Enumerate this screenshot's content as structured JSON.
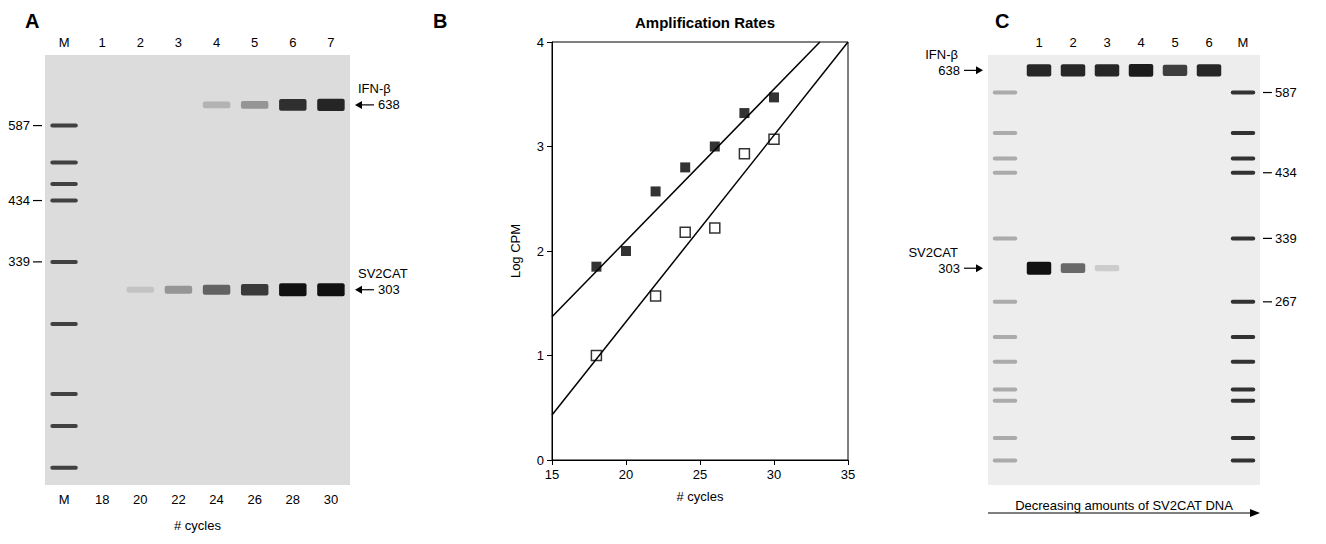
{
  "chart_data": [
    {
      "type": "gel",
      "panel": "A",
      "lanes": [
        "M",
        "1",
        "2",
        "3",
        "4",
        "5",
        "6",
        "7"
      ],
      "lane_labels_bottom": [
        "M",
        "18",
        "20",
        "22",
        "24",
        "26",
        "28",
        "30"
      ],
      "x_label": "# cycles",
      "log": "y",
      "ylim": [
        138,
        780
      ],
      "yticks": [
        587,
        434,
        339
      ],
      "ladder": {
        "sizes": [
          587,
          506,
          464,
          434,
          339,
          264,
          199,
          175,
          148
        ],
        "lane_intensities": [
          0.9,
          0,
          0,
          0,
          0,
          0,
          0,
          0
        ]
      },
      "bands": [
        {
          "name": "IFN-β",
          "size": 638,
          "intensities": [
            0,
            0,
            0,
            0,
            0.2,
            0.35,
            0.85,
            0.9
          ]
        },
        {
          "name": "SV2CAT",
          "size": 303,
          "intensities": [
            0,
            0,
            0.12,
            0.35,
            0.6,
            0.8,
            1,
            1
          ]
        }
      ]
    },
    {
      "type": "scatter",
      "panel": "B",
      "title": "Amplification Rates",
      "x_label": "# cycles",
      "y_label": "Log CPM",
      "xlim": [
        15,
        35
      ],
      "xticks": [
        15,
        20,
        25,
        30,
        35
      ],
      "ylim": [
        0,
        4
      ],
      "yticks": [
        0,
        1,
        2,
        3,
        4
      ],
      "grid": false,
      "series": [
        {
          "type": "scatter",
          "marker": "square",
          "color": "#000000",
          "x": [
            18,
            20,
            22,
            24,
            26,
            28,
            30
          ],
          "values": [
            1.85,
            2.0,
            2.57,
            2.8,
            3.0,
            3.32,
            3.47
          ]
        },
        {
          "type": "scatter",
          "marker": "open_square",
          "color": "#000000",
          "x": [
            18,
            22,
            24,
            26,
            28,
            30
          ],
          "values": [
            1.0,
            1.57,
            2.18,
            2.22,
            2.93,
            3.07
          ]
        },
        {
          "type": "line",
          "color": "#000000",
          "x": [
            15,
            33.1
          ],
          "values": [
            1.37,
            4
          ]
        },
        {
          "type": "line",
          "color": "#000000",
          "x": [
            15,
            35
          ],
          "values": [
            0.43,
            4
          ]
        }
      ]
    },
    {
      "type": "gel",
      "panel": "C",
      "lanes": [
        null,
        "1",
        "2",
        "3",
        "4",
        "5",
        "6",
        "M"
      ],
      "x_label": "Decreasing amounts of SV2CAT DNA",
      "log": "y",
      "ylim": [
        134,
        676
      ],
      "yticks": [
        587,
        434,
        339,
        267
      ],
      "ladder": {
        "sizes": [
          587,
          504,
          458,
          434,
          339,
          267,
          234,
          213,
          192,
          184,
          160,
          147
        ],
        "lane_intensities": [
          0.35,
          0,
          0,
          0,
          0,
          0,
          0,
          1
        ]
      },
      "bands": [
        {
          "name": "IFN-β",
          "size": 638,
          "intensities": [
            0,
            0.9,
            0.9,
            0.9,
            0.95,
            0.8,
            0.9,
            0
          ]
        },
        {
          "name": "SV2CAT",
          "size": 303,
          "intensities": [
            0,
            1,
            0.6,
            0.15,
            0,
            0,
            0,
            0
          ]
        }
      ]
    }
  ]
}
